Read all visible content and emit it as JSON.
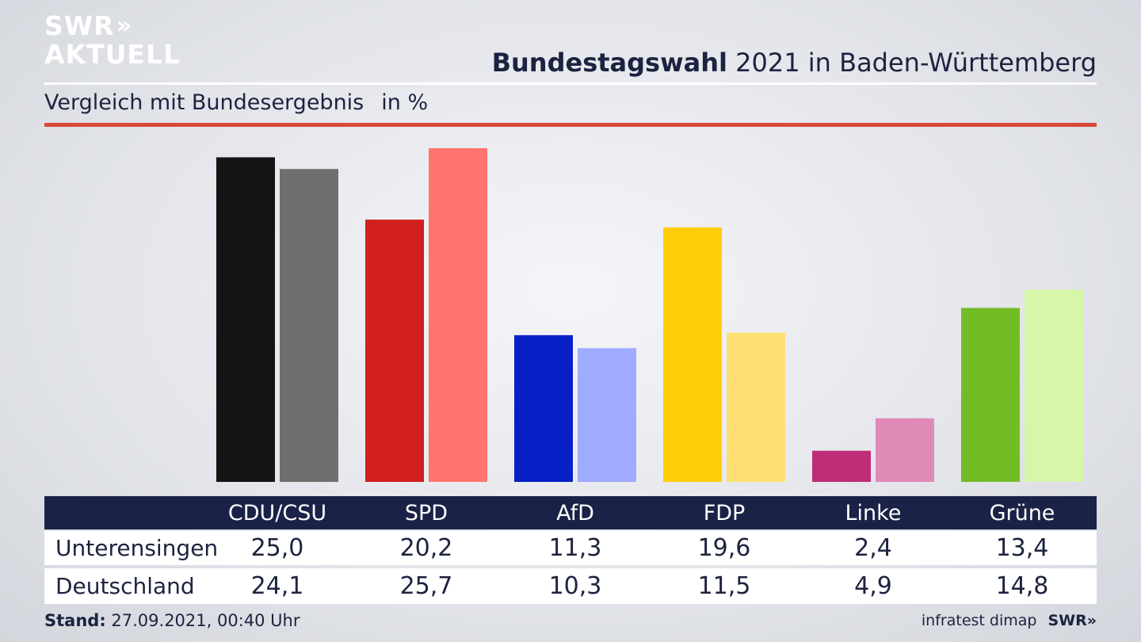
{
  "logo": {
    "line1": "SWR",
    "chevrons": "»",
    "line2": "AKTUELL"
  },
  "header": {
    "title_bold": "Bundestagswahl",
    "title_rest": " 2021 in Baden-Württemberg",
    "subtitle": "Vergleich mit Bundesergebnis",
    "unit": "in %"
  },
  "colors": {
    "accent_red": "#d9483a",
    "table_header": "#1b2247"
  },
  "chart_data": {
    "type": "bar",
    "categories": [
      "CDU/CSU",
      "SPD",
      "AfD",
      "FDP",
      "Linke",
      "Grüne"
    ],
    "series": [
      {
        "name": "Unterensingen",
        "values": [
          25.0,
          20.2,
          11.3,
          19.6,
          2.4,
          13.4
        ],
        "colors": [
          "#141414",
          "#d21f1f",
          "#0620c6",
          "#ffcd0a",
          "#bf2c78",
          "#74bc25"
        ]
      },
      {
        "name": "Deutschland",
        "values": [
          24.1,
          25.7,
          10.3,
          11.5,
          4.9,
          14.8
        ],
        "colors": [
          "#706f6d",
          "#ff756d",
          "#9eabff",
          "#ffe073",
          "#e08ab8",
          "#d6f7a9"
        ]
      }
    ],
    "ylim": [
      0,
      25.7
    ],
    "table": {
      "headers": [
        "CDU/CSU",
        "SPD",
        "AfD",
        "FDP",
        "Linke",
        "Grüne"
      ],
      "rows": [
        {
          "label": "Unterensingen",
          "values": [
            "25,0",
            "20,2",
            "11,3",
            "19,6",
            "2,4",
            "13,4"
          ]
        },
        {
          "label": "Deutschland",
          "values": [
            "24,1",
            "25,7",
            "10,3",
            "11,5",
            "4,9",
            "14,8"
          ]
        }
      ]
    }
  },
  "footer": {
    "stand_label": "Stand:",
    "stand_value": " 27.09.2021, 00:40 Uhr",
    "source": "infratest dimap",
    "brand": "SWR»"
  }
}
